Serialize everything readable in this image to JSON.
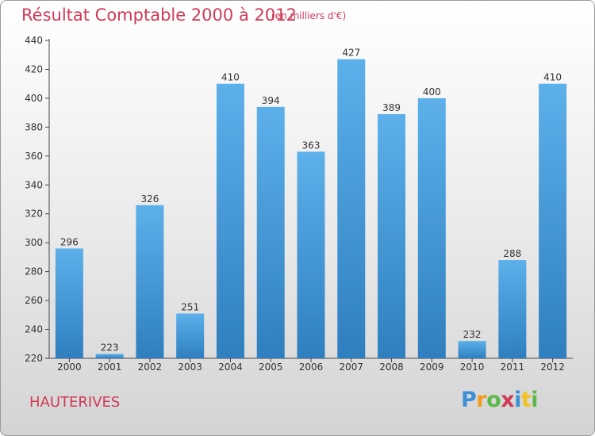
{
  "chart_data": {
    "type": "bar",
    "title": "Résultat Comptable 2000 à 2012",
    "subtitle": "(en milliers d'€)",
    "categories": [
      "2000",
      "2001",
      "2002",
      "2003",
      "2004",
      "2005",
      "2006",
      "2007",
      "2008",
      "2009",
      "2010",
      "2011",
      "2012"
    ],
    "values": [
      296,
      223,
      326,
      251,
      410,
      394,
      363,
      427,
      389,
      400,
      232,
      288,
      410
    ],
    "ylim": [
      220,
      440
    ],
    "yticks": [
      220,
      240,
      260,
      280,
      300,
      320,
      340,
      360,
      380,
      400,
      420,
      440
    ],
    "grid": false,
    "data_labels": true,
    "bar_color": "#4a9fdc",
    "bar_color_top": "#5db0ea",
    "bar_color_bottom": "#2f7fbf"
  },
  "footer": {
    "commune": "HAUTERIVES"
  },
  "logo": {
    "text": "Proxiti",
    "letters": [
      {
        "ch": "P",
        "color": "#3d8fd6"
      },
      {
        "ch": "r",
        "color": "#f29a1f"
      },
      {
        "ch": "o",
        "color": "#5cb84a"
      },
      {
        "ch": "x",
        "color": "#d03a57"
      },
      {
        "ch": "i",
        "color": "#3d8fd6"
      },
      {
        "ch": "t",
        "color": "#f2c31f"
      },
      {
        "ch": "i",
        "color": "#5cb84a"
      }
    ]
  }
}
